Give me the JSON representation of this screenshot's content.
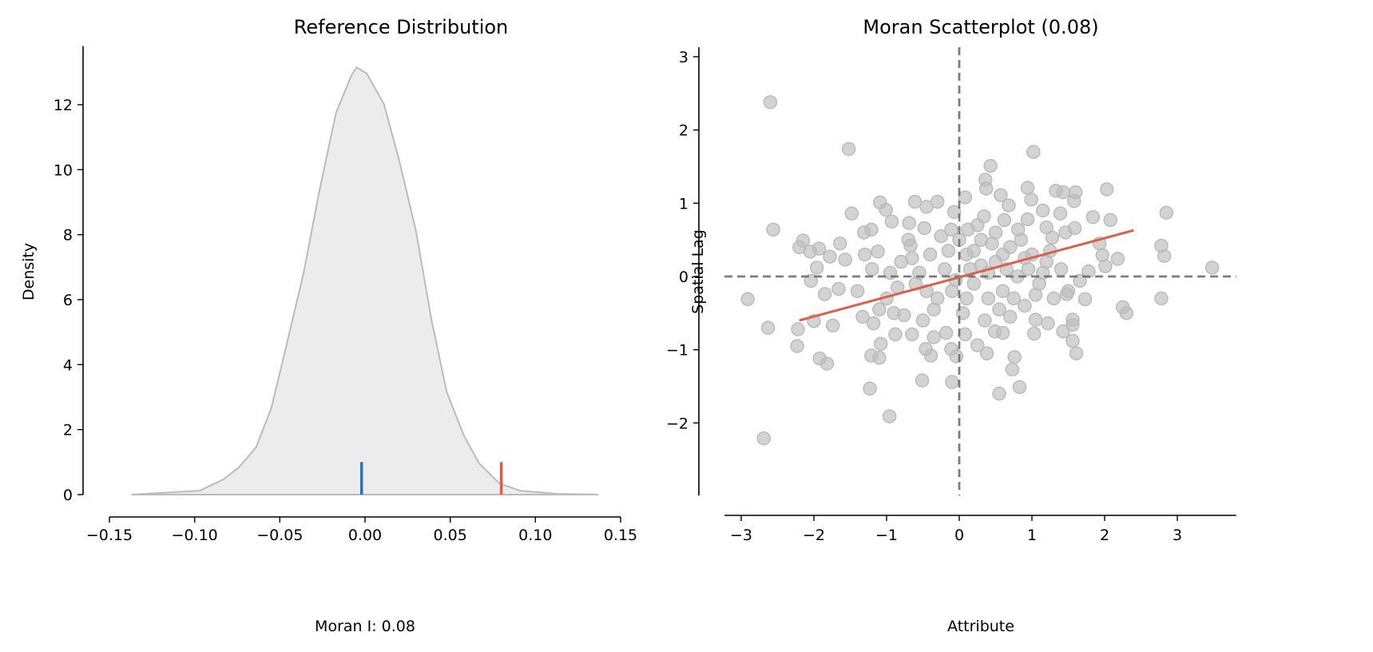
{
  "chart_data": [
    {
      "type": "area",
      "title": "Reference Distribution",
      "xlabel": "Moran I: 0.08",
      "ylabel": "Density",
      "xlim": [
        -0.15,
        0.15
      ],
      "ylim": [
        0,
        13.8
      ],
      "xticks": [
        "−0.15",
        "−0.10",
        "−0.05",
        "0.00",
        "0.05",
        "0.10",
        "0.15"
      ],
      "xtick_values": [
        -0.15,
        -0.1,
        -0.05,
        0.0,
        0.05,
        0.1,
        0.15
      ],
      "yticks": [
        "0",
        "2",
        "4",
        "6",
        "8",
        "10",
        "12"
      ],
      "ytick_values": [
        0,
        2,
        4,
        6,
        8,
        10,
        12
      ],
      "grid": false,
      "fill_color": "#ececec",
      "line_color": "#bbbbbb",
      "density": {
        "x": [
          -0.137,
          -0.097,
          -0.083,
          -0.074,
          -0.064,
          -0.055,
          -0.046,
          -0.036,
          -0.027,
          -0.017,
          -0.008,
          -0.005,
          0.001,
          0.011,
          0.02,
          0.03,
          0.039,
          0.048,
          0.058,
          0.067,
          0.079,
          0.091,
          0.114,
          0.137
        ],
        "y": [
          0,
          0.12,
          0.47,
          0.84,
          1.45,
          2.66,
          4.62,
          6.83,
          9.29,
          11.75,
          12.9,
          13.15,
          12.96,
          12.03,
          10.3,
          8.09,
          5.38,
          3.15,
          1.82,
          0.96,
          0.34,
          0.12,
          0.02,
          0
        ]
      },
      "markers": [
        {
          "x": -0.002,
          "height": 1,
          "color": "#1f77b4"
        },
        {
          "x": 0.08,
          "height": 1,
          "color": "#e05a45"
        }
      ]
    },
    {
      "type": "scatter",
      "title": "Moran Scatterplot (0.08)",
      "xlabel": "Attribute",
      "ylabel": "Spatial Lag",
      "xlim": [
        -3.23,
        3.81
      ],
      "ylim": [
        -2.99,
        3.13
      ],
      "xticks": [
        "−3",
        "−2",
        "−1",
        "0",
        "1",
        "2",
        "3"
      ],
      "xtick_values": [
        -3,
        -2,
        -1,
        0,
        1,
        2,
        3
      ],
      "yticks": [
        "−2",
        "−1",
        "0",
        "1",
        "2",
        "3"
      ],
      "ytick_values": [
        -2,
        -1,
        0,
        1,
        2,
        3
      ],
      "grid": false,
      "point_color": "#bbbbbb",
      "line_color": "#d9604a",
      "reference_line_color": "#666666",
      "fit_line": {
        "x": [
          -2.2,
          2.4
        ],
        "y": [
          -0.6,
          0.63
        ]
      },
      "points": [
        [
          -2.6,
          2.38
        ],
        [
          -1.52,
          1.74
        ],
        [
          1.02,
          1.7
        ],
        [
          -2.56,
          0.64
        ],
        [
          -2.91,
          -0.31
        ],
        [
          -2.63,
          -0.7
        ],
        [
          -2.69,
          -2.21
        ],
        [
          -2.23,
          -0.95
        ],
        [
          -2.22,
          -0.72
        ],
        [
          -1.92,
          -1.12
        ],
        [
          -1.82,
          -1.19
        ],
        [
          -1.74,
          -0.67
        ],
        [
          -2.0,
          -0.61
        ],
        [
          -2.2,
          0.4
        ],
        [
          -2.15,
          0.49
        ],
        [
          -2.05,
          0.34
        ],
        [
          -1.93,
          0.38
        ],
        [
          -1.78,
          0.27
        ],
        [
          -2.04,
          -0.06
        ],
        [
          -1.96,
          0.12
        ],
        [
          -1.85,
          -0.24
        ],
        [
          -1.66,
          -0.17
        ],
        [
          -1.64,
          0.45
        ],
        [
          -1.48,
          0.86
        ],
        [
          -1.57,
          0.23
        ],
        [
          -1.09,
          1.01
        ],
        [
          -1.01,
          0.91
        ],
        [
          -1.23,
          -1.53
        ],
        [
          -0.96,
          -1.91
        ],
        [
          -1.21,
          -1.08
        ],
        [
          -1.1,
          -1.11
        ],
        [
          -1.08,
          -0.92
        ],
        [
          -1.33,
          -0.55
        ],
        [
          -1.18,
          -0.64
        ],
        [
          -0.88,
          -0.79
        ],
        [
          -0.61,
          1.02
        ],
        [
          -0.45,
          0.95
        ],
        [
          -0.3,
          1.02
        ],
        [
          -0.51,
          -1.42
        ],
        [
          -0.1,
          -1.44
        ],
        [
          -0.46,
          -0.99
        ],
        [
          -0.39,
          -1.08
        ],
        [
          -0.11,
          -0.99
        ],
        [
          -0.04,
          -1.09
        ],
        [
          0.55,
          -1.6
        ],
        [
          0.83,
          -1.51
        ],
        [
          0.73,
          -1.27
        ],
        [
          0.76,
          -1.1
        ],
        [
          0.43,
          1.51
        ],
        [
          0.36,
          1.32
        ],
        [
          0.37,
          1.2
        ],
        [
          0.57,
          1.11
        ],
        [
          0.08,
          1.08
        ],
        [
          0.68,
          0.97
        ],
        [
          0.94,
          1.21
        ],
        [
          0.99,
          1.05
        ],
        [
          1.33,
          1.17
        ],
        [
          1.43,
          1.15
        ],
        [
          1.6,
          1.15
        ],
        [
          1.58,
          1.03
        ],
        [
          2.03,
          1.19
        ],
        [
          1.84,
          0.81
        ],
        [
          2.08,
          0.77
        ],
        [
          1.39,
          0.86
        ],
        [
          1.15,
          0.9
        ],
        [
          1.2,
          0.67
        ],
        [
          1.59,
          0.66
        ],
        [
          2.18,
          0.24
        ],
        [
          1.93,
          0.45
        ],
        [
          1.97,
          0.29
        ],
        [
          2.01,
          0.14
        ],
        [
          1.78,
          0.07
        ],
        [
          1.73,
          -0.31
        ],
        [
          1.66,
          -0.06
        ],
        [
          1.48,
          -0.24
        ],
        [
          1.56,
          -0.59
        ],
        [
          1.56,
          -0.66
        ],
        [
          1.56,
          -0.88
        ],
        [
          1.61,
          -1.05
        ],
        [
          1.43,
          -0.75
        ],
        [
          1.05,
          -0.59
        ],
        [
          1.03,
          -0.78
        ],
        [
          1.22,
          -0.64
        ],
        [
          0.6,
          -0.77
        ],
        [
          0.49,
          -0.75
        ],
        [
          0.38,
          -1.05
        ],
        [
          0.25,
          -0.94
        ],
        [
          0.08,
          -0.79
        ],
        [
          -0.18,
          -0.77
        ],
        [
          -0.35,
          -0.83
        ],
        [
          -0.65,
          -0.79
        ],
        [
          -0.76,
          -0.53
        ],
        [
          -0.07,
          0.88
        ],
        [
          -0.11,
          0.64
        ],
        [
          -0.69,
          0.73
        ],
        [
          -0.93,
          0.75
        ],
        [
          -1.21,
          0.64
        ],
        [
          -1.31,
          0.6
        ],
        [
          -1.12,
          0.34
        ],
        [
          -0.67,
          0.42
        ],
        [
          -0.48,
          0.66
        ],
        [
          0.12,
          0.64
        ],
        [
          0.34,
          0.82
        ],
        [
          0.62,
          0.77
        ],
        [
          0.81,
          0.64
        ],
        [
          0.94,
          0.78
        ],
        [
          1.28,
          0.53
        ],
        [
          1.46,
          0.6
        ],
        [
          2.25,
          -0.42
        ],
        [
          2.3,
          -0.5
        ],
        [
          2.78,
          0.42
        ],
        [
          2.82,
          0.28
        ],
        [
          2.85,
          0.87
        ],
        [
          2.78,
          -0.3
        ],
        [
          3.48,
          0.12
        ],
        [
          -0.8,
          0.2
        ],
        [
          -0.6,
          -0.1
        ],
        [
          -0.4,
          0.3
        ],
        [
          -0.3,
          -0.3
        ],
        [
          -0.2,
          0.1
        ],
        [
          -0.1,
          -0.2
        ],
        [
          0.1,
          0.3
        ],
        [
          0.2,
          -0.1
        ],
        [
          0.3,
          0.5
        ],
        [
          0.4,
          -0.3
        ],
        [
          0.5,
          0.2
        ],
        [
          0.6,
          -0.2
        ],
        [
          0.7,
          0.4
        ],
        [
          0.8,
          0.0
        ],
        [
          0.9,
          -0.4
        ],
        [
          1.0,
          0.3
        ],
        [
          1.1,
          -0.1
        ],
        [
          1.2,
          0.2
        ],
        [
          1.3,
          -0.3
        ],
        [
          -1.0,
          -0.3
        ],
        [
          -1.2,
          0.1
        ],
        [
          -0.9,
          -0.5
        ],
        [
          -0.5,
          -0.6
        ],
        [
          0.0,
          0.5
        ],
        [
          0.05,
          -0.5
        ],
        [
          0.15,
          0.1
        ],
        [
          0.25,
          0.7
        ],
        [
          0.35,
          -0.6
        ],
        [
          0.45,
          0.45
        ],
        [
          0.55,
          -0.45
        ],
        [
          0.65,
          0.1
        ],
        [
          0.75,
          -0.3
        ],
        [
          0.85,
          0.5
        ],
        [
          0.95,
          0.1
        ],
        [
          -0.7,
          0.5
        ],
        [
          -0.55,
          0.05
        ],
        [
          -0.35,
          -0.45
        ],
        [
          -0.15,
          0.35
        ],
        [
          -0.05,
          -0.05
        ],
        [
          1.4,
          0.1
        ],
        [
          1.5,
          -0.2
        ],
        [
          -1.4,
          -0.2
        ],
        [
          -1.3,
          0.3
        ],
        [
          -0.85,
          -0.15
        ],
        [
          -0.25,
          0.55
        ],
        [
          0.1,
          -0.3
        ],
        [
          0.3,
          0.15
        ],
        [
          0.5,
          0.6
        ],
        [
          0.7,
          -0.55
        ],
        [
          1.05,
          -0.25
        ],
        [
          1.25,
          0.35
        ],
        [
          -1.1,
          -0.45
        ],
        [
          -0.45,
          -0.2
        ],
        [
          0.2,
          0.35
        ],
        [
          0.6,
          0.3
        ],
        [
          0.9,
          0.25
        ],
        [
          -0.65,
          0.25
        ],
        [
          0.4,
          0.05
        ],
        [
          -0.95,
          0.05
        ],
        [
          1.15,
          0.05
        ]
      ]
    }
  ]
}
